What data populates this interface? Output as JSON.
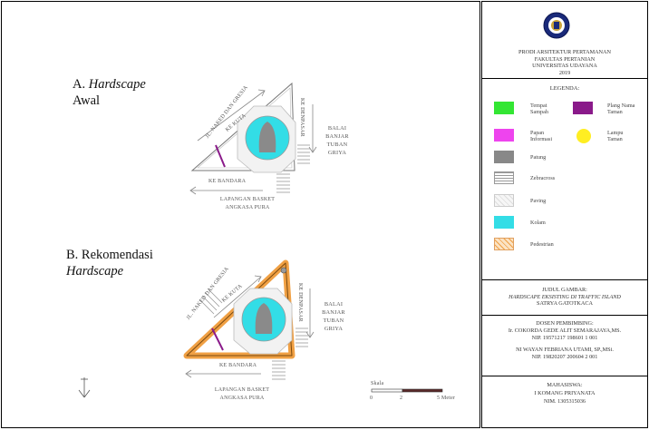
{
  "panels": {
    "a_letter": "A.",
    "a_title_italic": "Hardscape",
    "a_title_line2": "Awal",
    "b_title_line1": "B. Rekomendasi",
    "b_title_italic": "Hardscape"
  },
  "plan_labels": {
    "road_nw": "JL. NAKED DAN GRESIA",
    "to_kuta": "KE KUTA",
    "to_denpasar": "KE DENPASAR",
    "balai": [
      "BALAI",
      "BANJAR",
      "TUBAN",
      "GRIYA"
    ],
    "to_bandara": "KE BANDARA",
    "lapangan": "LAPANGAN BASKET",
    "angkasa": "ANGKASA PURA"
  },
  "scale": {
    "title": "Skala",
    "ticks": [
      "0",
      "2",
      "5 Meter"
    ]
  },
  "colors": {
    "tempat_sampah": "#33e633",
    "papan_informasi": "#ee44ee",
    "patung": "#888888",
    "kolam": "#33dde6",
    "plang_nama_taman": "#8a1a8a",
    "lampu_taman": "#ffee22",
    "pedestrian": "#f0a044"
  },
  "sidebar": {
    "institution": [
      "PRODI ARSITEKTUR PERTAMANAN",
      "FAKULTAS PERTANIAN",
      "UNIVERSITAS UDAYANA",
      "2019"
    ],
    "legend_title": "LEGENDA:",
    "legend": {
      "tempat_sampah": [
        "Tempat",
        "Sampah"
      ],
      "plang_nama_taman": [
        "Plang Nama",
        "Taman"
      ],
      "papan_informasi": [
        "Papan",
        "Informasi"
      ],
      "lampu_taman": [
        "Lampu",
        "Taman"
      ],
      "patung": "Patung",
      "zebracross": "Zebracross",
      "paving": "Paving",
      "kolam": "Kolam",
      "pedestrian": "Pedestrian"
    },
    "judul_label": "JUDUL GAMBAR:",
    "judul_value": [
      "HARDSCAPE EKSISTING DI TRAFFIC ISLAND",
      "SATRYA GATOTKACA"
    ],
    "dosen_label": "DOSEN PEMBIMBING:",
    "dosen": [
      "Ir. COKORDA GEDE ALIT SEMARAJAYA,MS.",
      "NIP. 19571217 198601 1 001",
      "NI WAYAN FEBRIANA UTAMI, SP.,MSi.",
      "NIP. 19820207 200604 2 001"
    ],
    "mahasiswa_label": "MAHASISWA:",
    "mahasiswa": [
      "I KOMANG PRIYANATA",
      "NIM. 1305315036"
    ]
  }
}
